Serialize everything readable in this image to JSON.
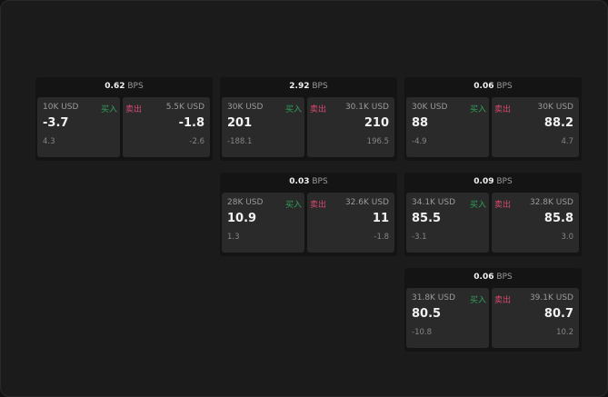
{
  "colors": {
    "buy": "#2fa35c",
    "sell": "#d84a70"
  },
  "labels": {
    "buy": "买入",
    "sell": "卖出",
    "unit": "BPS"
  },
  "cards": [
    {
      "spread": "0.62",
      "buy": {
        "size": "10K USD",
        "price": "-3.7",
        "change": "4.3"
      },
      "sell": {
        "size": "5.5K USD",
        "price": "-1.8",
        "change": "-2.6"
      }
    },
    {
      "spread": "2.92",
      "buy": {
        "size": "30K USD",
        "price": "201",
        "change": "-188.1"
      },
      "sell": {
        "size": "30.1K USD",
        "price": "210",
        "change": "196.5"
      }
    },
    {
      "spread": "0.06",
      "buy": {
        "size": "30K USD",
        "price": "88",
        "change": "-4.9"
      },
      "sell": {
        "size": "30K USD",
        "price": "88.2",
        "change": "4.7"
      }
    },
    {
      "spread": "0.03",
      "buy": {
        "size": "28K USD",
        "price": "10.9",
        "change": "1.3"
      },
      "sell": {
        "size": "32.6K USD",
        "price": "11",
        "change": "-1.8"
      }
    },
    {
      "spread": "0.09",
      "buy": {
        "size": "34.1K USD",
        "price": "85.5",
        "change": "-3.1"
      },
      "sell": {
        "size": "32.8K USD",
        "price": "85.8",
        "change": "3.0"
      }
    },
    {
      "spread": "0.06",
      "buy": {
        "size": "31.8K USD",
        "price": "80.5",
        "change": "-10.8"
      },
      "sell": {
        "size": "39.1K USD",
        "price": "80.7",
        "change": "10.2"
      }
    }
  ]
}
